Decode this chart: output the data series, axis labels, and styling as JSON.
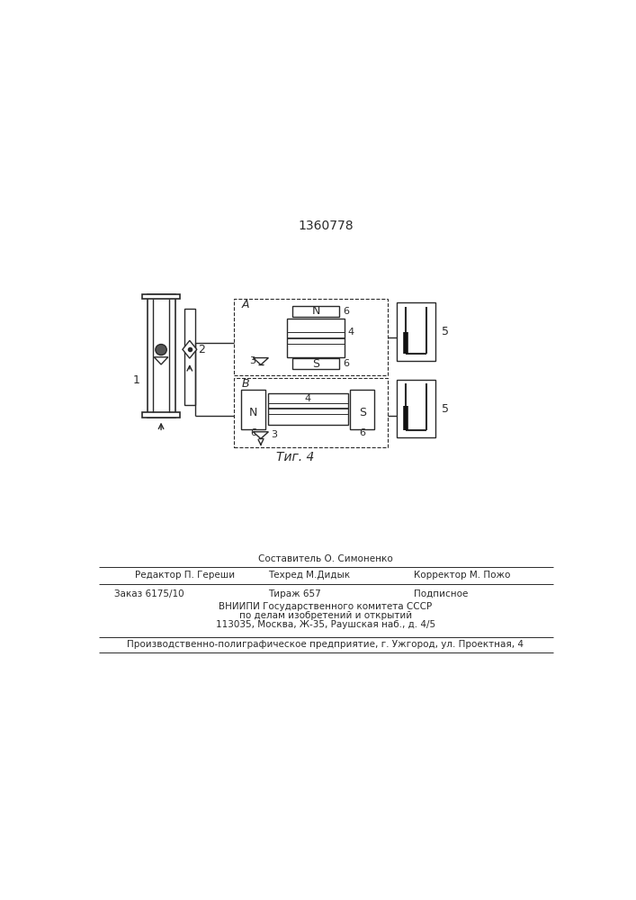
{
  "title": "1360778",
  "fig_label": "Τиг. 4",
  "bg_color": "#ffffff",
  "line_color": "#2a2a2a",
  "footer": {
    "line1": "Составитель О. Симоненко",
    "editor": "Редактор П. Гереши",
    "tehred": "Техред М.Дидык",
    "correktor": "Корректор М. Пожо",
    "zakaz": "Заказ 6175/10",
    "tirazh": "Тираж 657",
    "podpisnoe": "Подписное",
    "vniip1": "ВНИИПИ Государственного комитета СССР",
    "vniip2": "по делам изобретений и открытий",
    "vniip3": "113035, Москва, Ж-35, Раушская наб., д. 4/5",
    "production": "Производственно-полиграфическое предприятие, г. Ужгород, ул. Проектная, 4"
  }
}
